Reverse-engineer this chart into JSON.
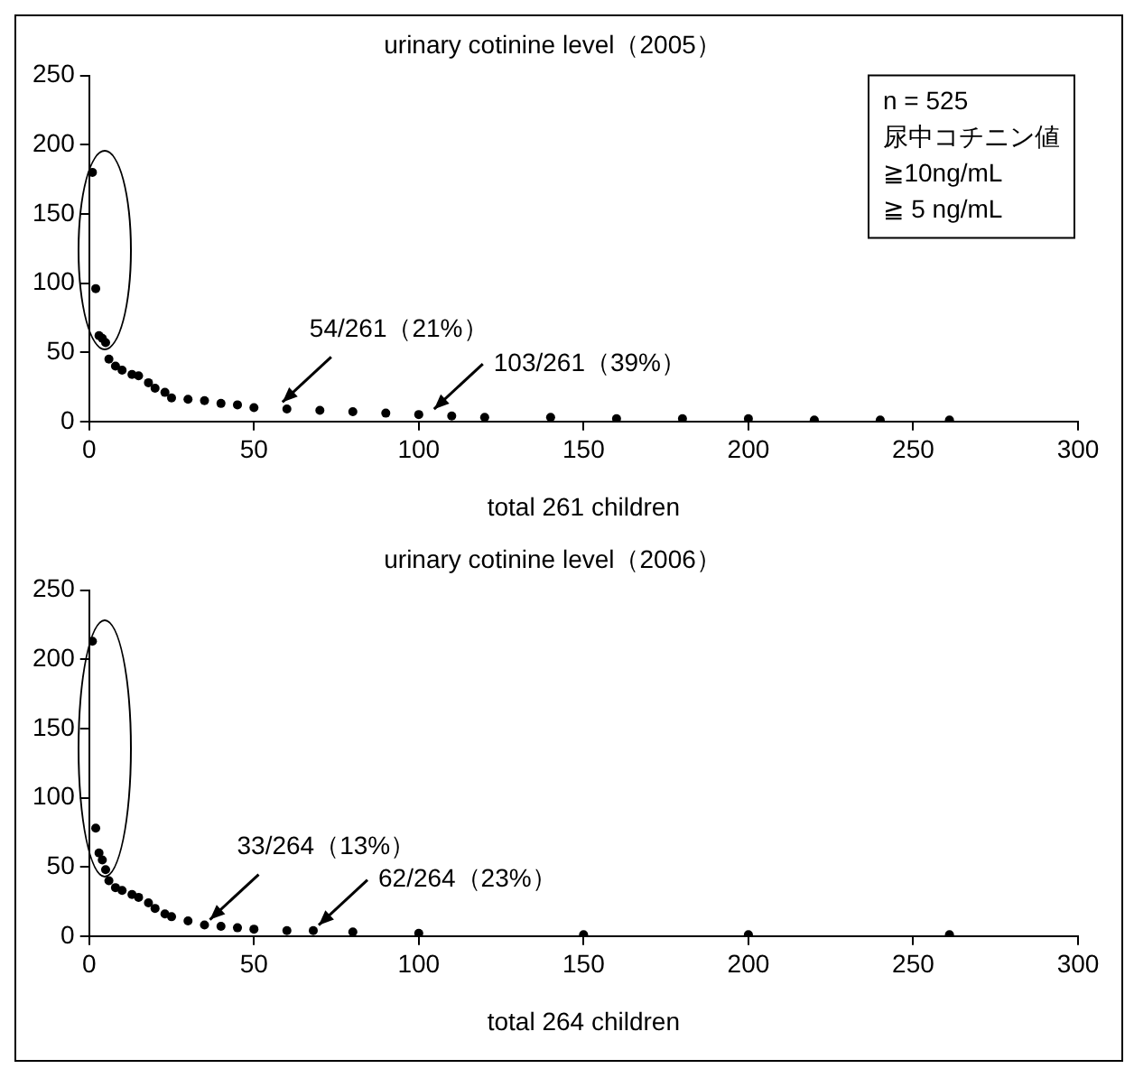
{
  "chart_data": [
    {
      "type": "scatter",
      "title": "urinary cotinine level（2005）",
      "xlabel": "total 261 children",
      "marker": "circle",
      "grid": false,
      "legend": false,
      "xlim": [
        0,
        300
      ],
      "xticks": [
        0,
        50,
        100,
        150,
        200,
        250,
        300
      ],
      "ylim": [
        0,
        250
      ],
      "yticks": [
        0,
        50,
        100,
        150,
        200,
        250
      ],
      "series": [
        {
          "color": "#000000",
          "x": [
            1,
            2,
            3,
            4,
            5,
            6,
            8,
            10,
            13,
            15,
            18,
            20,
            23,
            25,
            30,
            35,
            40,
            45,
            50,
            60,
            70,
            80,
            90,
            100,
            110,
            120,
            140,
            160,
            180,
            200,
            220,
            240,
            261
          ],
          "values": [
            180,
            96,
            62,
            60,
            57,
            45,
            40,
            37,
            34,
            33,
            28,
            24,
            21,
            17,
            16,
            15,
            13,
            12,
            10,
            9,
            8,
            7,
            6,
            5,
            4,
            3,
            3,
            2,
            2,
            2,
            1,
            1,
            1
          ]
        }
      ],
      "annotations": [
        {
          "text": "54/261（21%）",
          "x": 57,
          "y": 10
        },
        {
          "text": "103/261（39%）",
          "x": 103,
          "y": 5
        },
        "n = 525",
        "尿中コチニン値",
        "≧10ng/mL",
        "≧ 5 ng/mL"
      ]
    },
    {
      "type": "scatter",
      "title": "urinary cotinine level（2006）",
      "xlabel": "total 264 children",
      "marker": "circle",
      "grid": false,
      "legend": false,
      "xlim": [
        0,
        300
      ],
      "xticks": [
        0,
        50,
        100,
        150,
        200,
        250,
        300
      ],
      "ylim": [
        0,
        250
      ],
      "yticks": [
        0,
        50,
        100,
        150,
        200,
        250
      ],
      "series": [
        {
          "color": "#000000",
          "x": [
            1,
            2,
            3,
            4,
            5,
            6,
            8,
            10,
            13,
            15,
            18,
            20,
            23,
            25,
            30,
            35,
            40,
            45,
            50,
            60,
            68,
            80,
            100,
            150,
            200,
            261
          ],
          "values": [
            213,
            78,
            60,
            55,
            48,
            40,
            35,
            33,
            30,
            28,
            24,
            20,
            16,
            14,
            11,
            8,
            7,
            6,
            5,
            4,
            4,
            3,
            2,
            1,
            1,
            1
          ]
        }
      ],
      "annotations": [
        {
          "text": "33/264（13%）",
          "x": 35,
          "y": 8
        },
        {
          "text": "62/264（23%）",
          "x": 68,
          "y": 4
        }
      ]
    }
  ]
}
